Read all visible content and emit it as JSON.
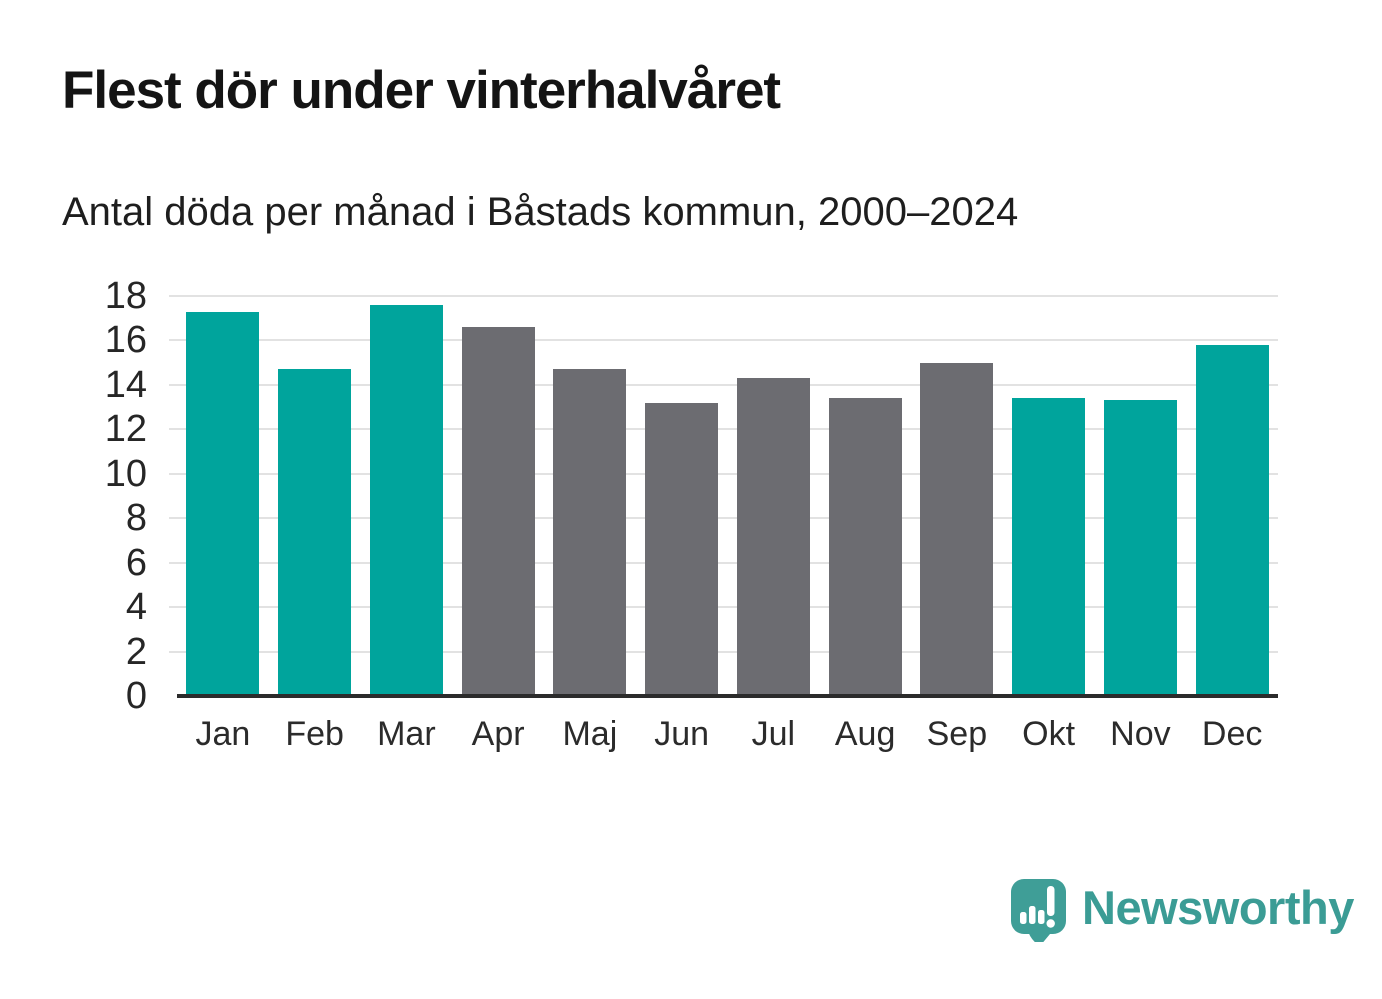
{
  "chart_data": {
    "type": "bar",
    "title": "Flest dör under vinterhalvåret",
    "subtitle": "Antal döda per månad i Båstads kommun, 2000–2024",
    "categories": [
      "Jan",
      "Feb",
      "Mar",
      "Apr",
      "Maj",
      "Jun",
      "Jul",
      "Aug",
      "Sep",
      "Okt",
      "Nov",
      "Dec"
    ],
    "values": [
      17.3,
      14.7,
      17.6,
      16.6,
      14.7,
      13.2,
      14.3,
      13.4,
      15.0,
      13.4,
      13.3,
      15.8
    ],
    "bar_colors": [
      "#00a49c",
      "#00a49c",
      "#00a49c",
      "#6c6c71",
      "#6c6c71",
      "#6c6c71",
      "#6c6c71",
      "#6c6c71",
      "#6c6c71",
      "#00a49c",
      "#00a49c",
      "#00a49c"
    ],
    "xlabel": "",
    "ylabel": "",
    "ylim": [
      0,
      18
    ],
    "yticks": [
      0,
      2,
      4,
      6,
      8,
      10,
      12,
      14,
      16,
      18
    ],
    "grid": "horizontal",
    "legend": "none",
    "colors": {
      "winter_highlight": "#00a49c",
      "summer_neutral": "#6c6c71",
      "gridline": "#e2e2e2",
      "axis_line": "#2b2b2b"
    }
  },
  "branding": {
    "logo_text": "Newsworthy",
    "logo_color": "#3b9c95"
  }
}
